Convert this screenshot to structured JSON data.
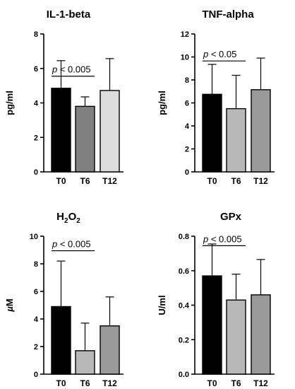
{
  "chart_data": [
    {
      "type": "bar",
      "title": "IL-1-beta",
      "title_sub": "",
      "ylabel": "pg/ml",
      "categories": [
        "T0",
        "T6",
        "T12"
      ],
      "values": [
        4.85,
        3.8,
        4.72
      ],
      "errors": [
        1.6,
        0.55,
        1.85
      ],
      "colors": [
        "#000000",
        "#808080",
        "#dcdcdc"
      ],
      "ylim": [
        0,
        8
      ],
      "yticks": [
        "0",
        "2",
        "4",
        "6",
        "8"
      ],
      "annotation": {
        "prefix": "p",
        "text": " < 0.005",
        "from": 0,
        "to": 1,
        "y": 5.55
      }
    },
    {
      "type": "bar",
      "title": "TNF-alpha",
      "title_sub": "",
      "ylabel": "pg/ml",
      "categories": [
        "T0",
        "T6",
        "T12"
      ],
      "values": [
        6.75,
        5.5,
        7.15
      ],
      "errors": [
        2.6,
        2.9,
        2.75
      ],
      "colors": [
        "#000000",
        "#b8b8b8",
        "#9a9a9a"
      ],
      "ylim": [
        0,
        12
      ],
      "yticks": [
        "0",
        "2",
        "4",
        "6",
        "8",
        "10",
        "12"
      ],
      "annotation": {
        "prefix": "p",
        "text": " < 0.05",
        "from": 0,
        "to": 1,
        "y": 9.65
      }
    },
    {
      "type": "bar",
      "title": "H",
      "title_parts": [
        "H",
        "2",
        "O",
        "2"
      ],
      "ylabel": "µM",
      "ylabel_italic": "µ",
      "ylabel_rest": "M",
      "categories": [
        "T0",
        "T6",
        "T12"
      ],
      "values": [
        4.9,
        1.7,
        3.5
      ],
      "errors": [
        3.3,
        2.0,
        2.1
      ],
      "colors": [
        "#000000",
        "#b8b8b8",
        "#9a9a9a"
      ],
      "ylim": [
        0,
        10
      ],
      "yticks": [
        "0",
        "2",
        "4",
        "6",
        "8",
        "10"
      ],
      "annotation": {
        "prefix": "p",
        "text": " < 0.005",
        "from": 0,
        "to": 1,
        "y": 8.95
      }
    },
    {
      "type": "bar",
      "title": "GPx",
      "title_sub": "",
      "ylabel": "U/ml",
      "categories": [
        "T0",
        "T6",
        "T12"
      ],
      "values": [
        0.57,
        0.43,
        0.46
      ],
      "errors": [
        0.185,
        0.15,
        0.205
      ],
      "colors": [
        "#000000",
        "#b8b8b8",
        "#9a9a9a"
      ],
      "ylim": [
        0,
        0.8
      ],
      "yticks": [
        "0.0",
        "0.2",
        "0.4",
        "0.6",
        "0.8"
      ],
      "annotation": {
        "prefix": "p",
        "text": " < 0.005",
        "from": 0,
        "to": 1,
        "y": 0.745
      }
    }
  ]
}
